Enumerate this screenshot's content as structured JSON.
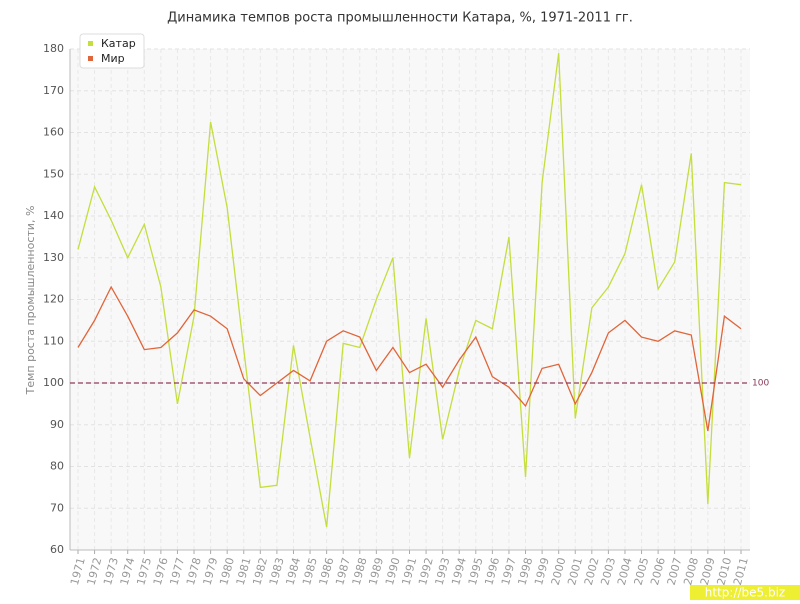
{
  "chart_data": {
    "type": "line",
    "title": "Динамика темпов роста промышленности Катара, %, 1971-2011 гг.",
    "y_label": "Темп роста промышленности, %",
    "categories": [
      "1971",
      "1972",
      "1973",
      "1974",
      "1975",
      "1976",
      "1977",
      "1978",
      "1979",
      "1980",
      "1981",
      "1982",
      "1983",
      "1984",
      "1985",
      "1986",
      "1987",
      "1988",
      "1989",
      "1990",
      "1991",
      "1992",
      "1993",
      "1994",
      "1995",
      "1996",
      "1997",
      "1998",
      "1999",
      "2000",
      "2001",
      "2002",
      "2003",
      "2004",
      "2005",
      "2006",
      "2007",
      "2008",
      "2009",
      "2010",
      "2011"
    ],
    "series": [
      {
        "name": "Катар",
        "color": "#c6dd3e",
        "values": [
          132,
          147,
          139,
          130,
          138,
          123,
          95,
          116,
          162.5,
          142,
          108,
          75,
          75.5,
          109,
          87,
          65.5,
          109.5,
          108.5,
          120,
          130,
          82,
          115.5,
          86.5,
          103,
          115,
          113,
          135,
          77.5,
          148,
          179,
          91.5,
          118,
          123,
          131,
          147.5,
          122.5,
          129,
          155,
          71,
          148,
          147.5
        ]
      },
      {
        "name": "Мир",
        "color": "#e0653a",
        "values": [
          108.5,
          115,
          123,
          116,
          108,
          108.5,
          112,
          117.5,
          116,
          113,
          101,
          97,
          100,
          103,
          100.5,
          110,
          112.5,
          111,
          103,
          108.5,
          102.5,
          104.5,
          99,
          105.5,
          111,
          101.5,
          99,
          94.5,
          103.5,
          104.5,
          95,
          102.5,
          112,
          115,
          111,
          110,
          112.5,
          111.5,
          88.5,
          116,
          113
        ]
      }
    ],
    "ylim": [
      60,
      180
    ],
    "yticks": [
      60,
      70,
      80,
      90,
      100,
      110,
      120,
      130,
      140,
      150,
      160,
      170,
      180
    ],
    "grid": true,
    "legend": "top-left",
    "reference_line": 100,
    "reference_color": "#8b3a5a",
    "watermark": "http://be5.biz"
  }
}
